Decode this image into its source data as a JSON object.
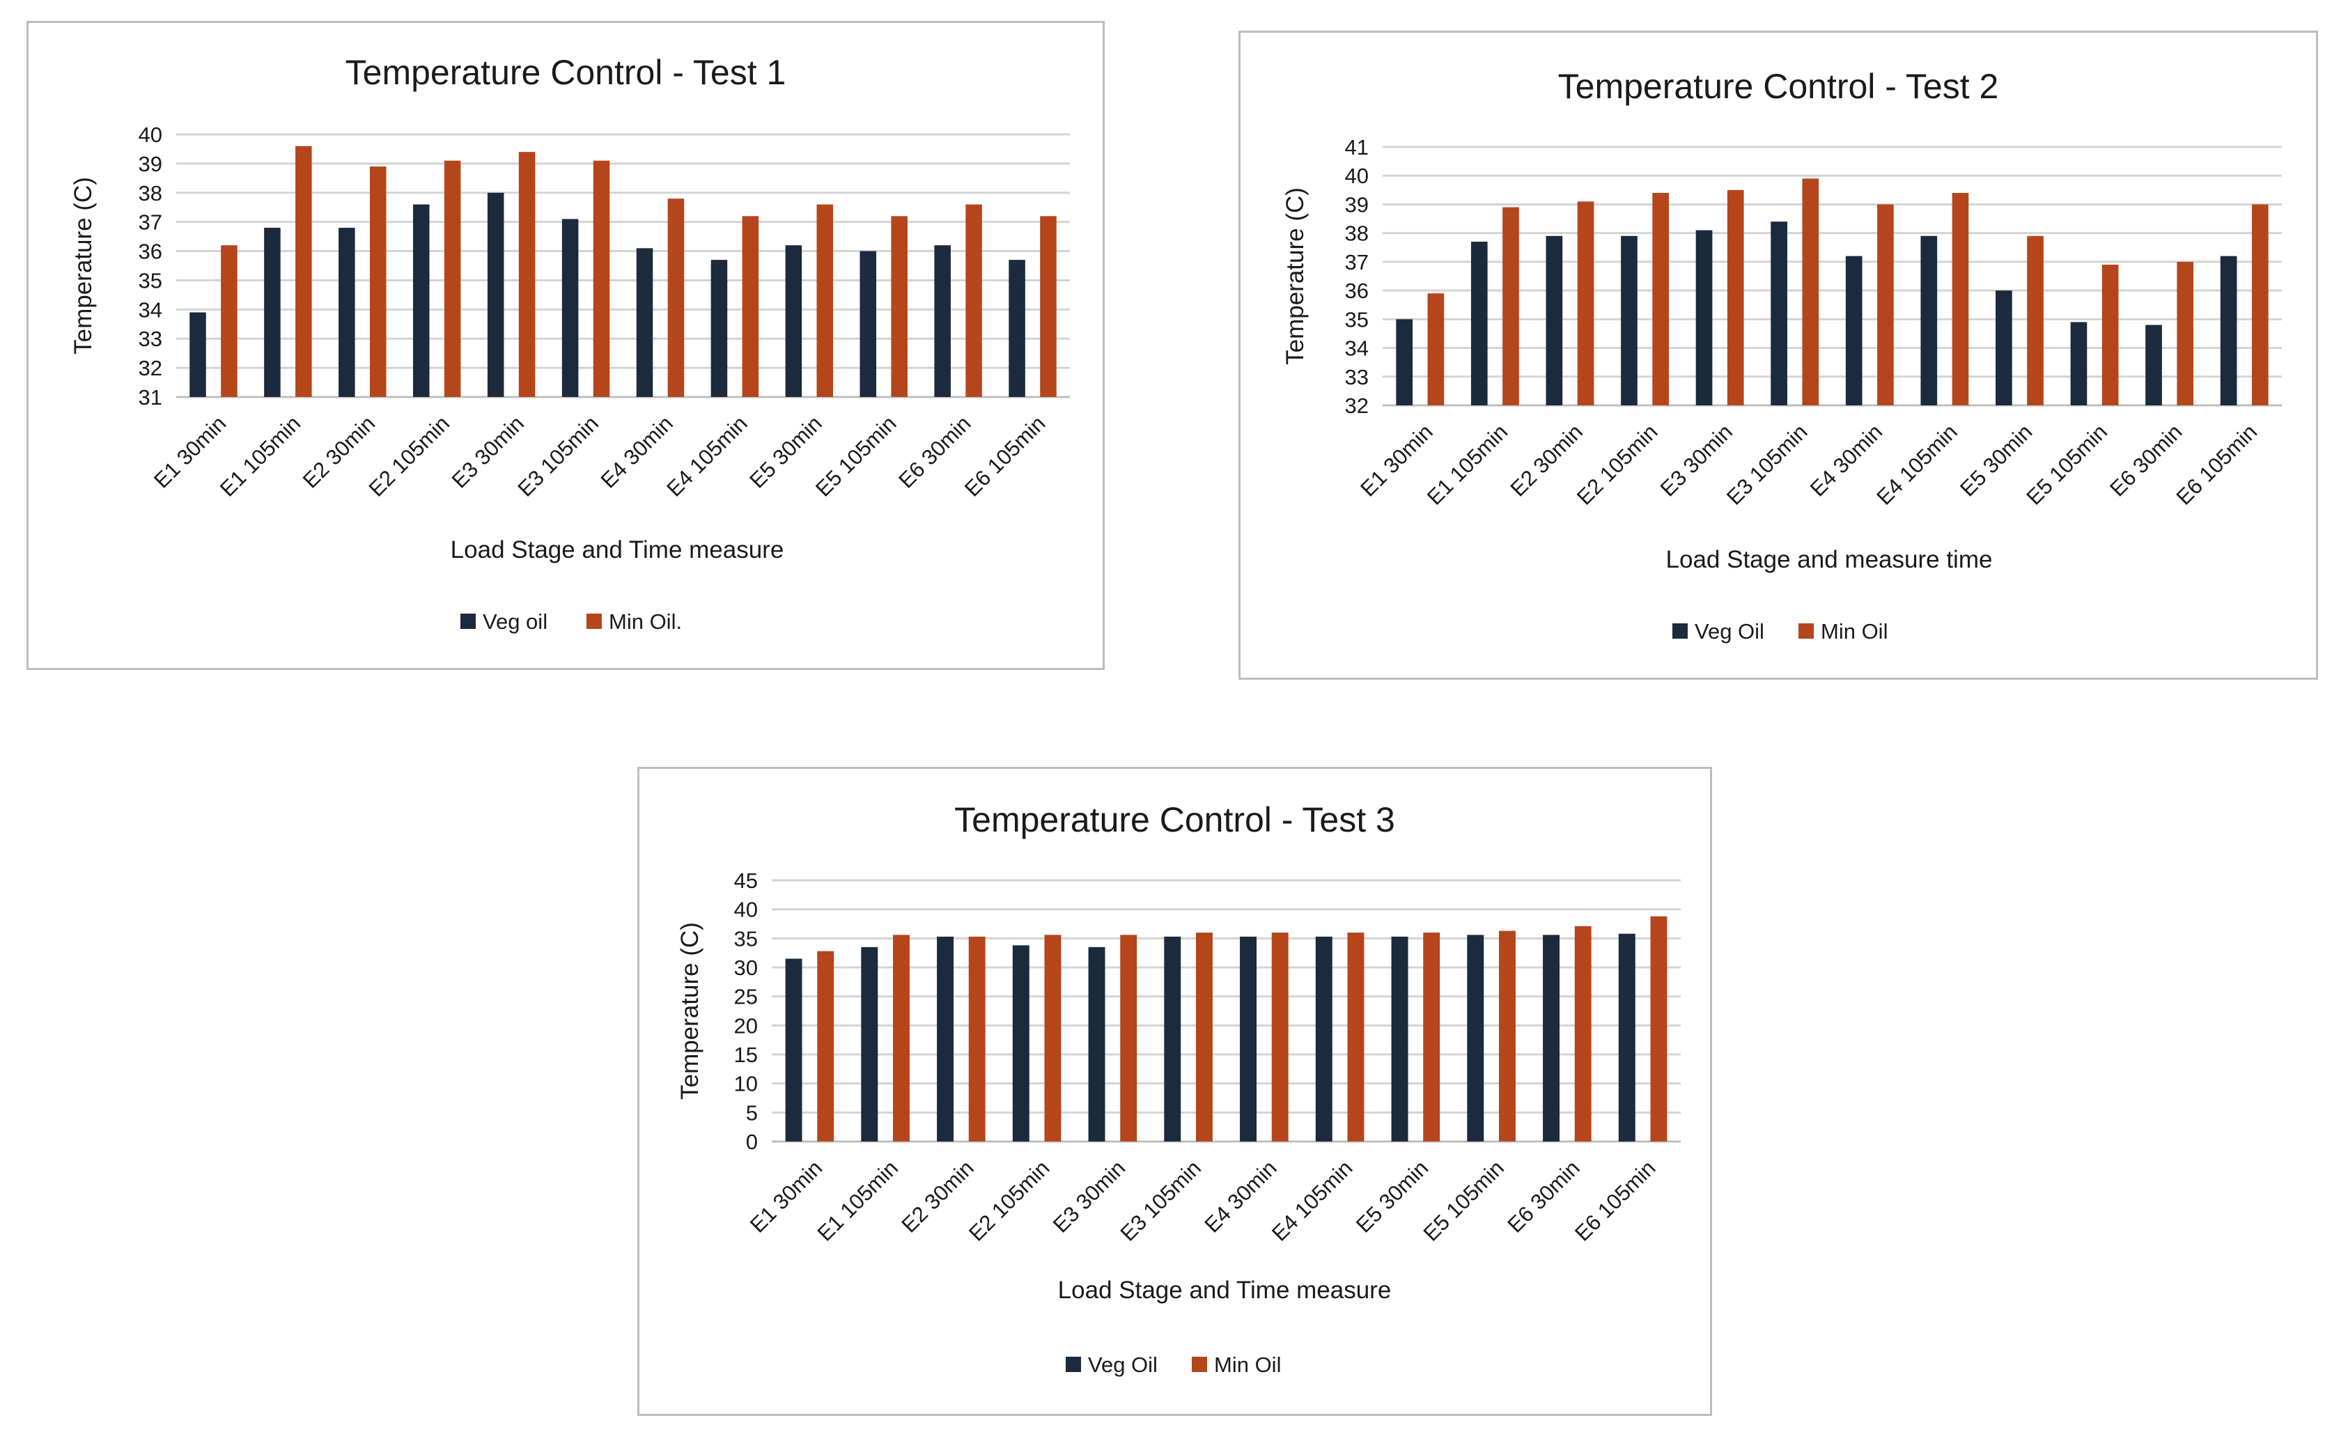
{
  "colors": {
    "veg": "#1b2a3d",
    "min": "#b5461c",
    "grid": "#d4d4d4",
    "axis": "#bfbfbf"
  },
  "chart_data": [
    {
      "type": "bar",
      "title": "Temperature Control - Test 1",
      "xlabel": "Load Stage and Time measure",
      "ylabel": "Temperature (C)",
      "ylim": [
        31,
        40
      ],
      "yticks": [
        31,
        32,
        33,
        34,
        35,
        36,
        37,
        38,
        39,
        40
      ],
      "categories": [
        "E1 30min",
        "E1 105min",
        "E2 30min",
        "E2 105min",
        "E3 30min",
        "E3 105min",
        "E4 30min",
        "E4 105min",
        "E5 30min",
        "E5 105min",
        "E6 30min",
        "E6 105min"
      ],
      "series": [
        {
          "name": "Veg oil",
          "values": [
            33.9,
            36.8,
            36.8,
            37.6,
            38.0,
            37.1,
            36.1,
            35.7,
            36.2,
            36.0,
            36.2,
            35.7
          ]
        },
        {
          "name": "Min Oil.",
          "values": [
            36.2,
            39.6,
            38.9,
            39.1,
            39.4,
            39.1,
            37.8,
            37.2,
            37.6,
            37.2,
            37.6,
            37.2
          ]
        }
      ],
      "legend": "bottom"
    },
    {
      "type": "bar",
      "title": "Temperature Control - Test 2",
      "xlabel": "Load Stage and measure time",
      "ylabel": "Temperature (C)",
      "ylim": [
        32,
        41
      ],
      "yticks": [
        32,
        33,
        34,
        35,
        36,
        37,
        38,
        39,
        40,
        41
      ],
      "categories": [
        "E1 30min",
        "E1 105min",
        "E2 30min",
        "E2 105min",
        "E3 30min",
        "E3 105min",
        "E4 30min",
        "E4 105min",
        "E5 30min",
        "E5 105min",
        "E6 30min",
        "E6 105min"
      ],
      "series": [
        {
          "name": "Veg Oil",
          "values": [
            35.0,
            37.7,
            37.9,
            37.9,
            38.1,
            38.4,
            37.2,
            37.9,
            36.0,
            34.9,
            34.8,
            37.2
          ]
        },
        {
          "name": "Min Oil",
          "values": [
            35.9,
            38.9,
            39.1,
            39.4,
            39.5,
            39.9,
            39.0,
            39.4,
            37.9,
            36.9,
            37.0,
            39.0
          ]
        }
      ],
      "legend": "bottom"
    },
    {
      "type": "bar",
      "title": "Temperature Control - Test 3",
      "xlabel": "Load Stage and Time measure",
      "ylabel": "Temperature (C)",
      "ylim": [
        0,
        45
      ],
      "yticks": [
        0,
        5,
        10,
        15,
        20,
        25,
        30,
        35,
        40,
        45
      ],
      "categories": [
        "E1 30min",
        "E1 105min",
        "E2 30min",
        "E2 105min",
        "E3 30min",
        "E3 105min",
        "E4 30min",
        "E4 105min",
        "E5 30min",
        "E5 105min",
        "E6 30min",
        "E6 105min"
      ],
      "series": [
        {
          "name": "Veg Oil",
          "values": [
            31.5,
            33.5,
            35.3,
            33.8,
            33.5,
            35.3,
            35.3,
            35.3,
            35.3,
            35.6,
            35.6,
            35.8
          ]
        },
        {
          "name": "Min Oil",
          "values": [
            32.8,
            35.6,
            35.3,
            35.6,
            35.6,
            36.0,
            36.0,
            36.0,
            36.0,
            36.3,
            37.1,
            38.8
          ]
        }
      ],
      "legend": "bottom"
    }
  ]
}
